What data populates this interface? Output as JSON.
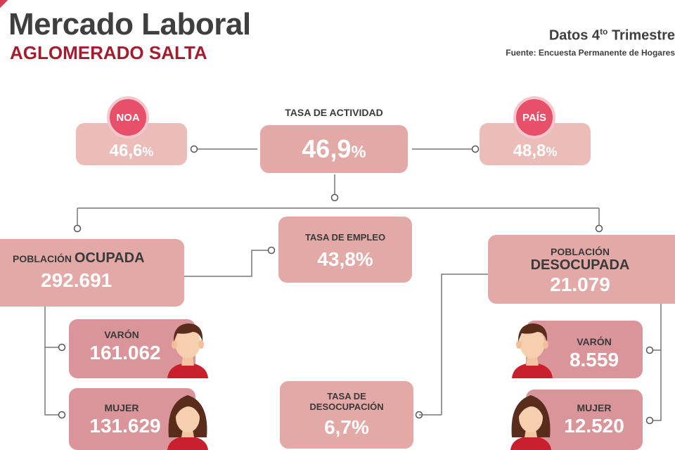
{
  "header": {
    "title": "Mercado Laboral",
    "subtitle": "AGLOMERADO SALTA",
    "datos_prefix": "Datos 4",
    "datos_sup": "to",
    "datos_suffix": " Trimestre",
    "fuente": "Fuente: Encuesta Permanente de Hogares"
  },
  "actividad": {
    "label": "TASA DE ACTIVIDAD",
    "value": "46,9",
    "unit": "%"
  },
  "noa": {
    "badge": "NOA",
    "value": "46,6",
    "unit": "%"
  },
  "pais": {
    "badge": "PAÍS",
    "value": "48,8",
    "unit": "%"
  },
  "empleo": {
    "label": "TASA DE EMPLEO",
    "value": "43,8%"
  },
  "ocupada": {
    "label_prefix": "POBLACIÓN ",
    "label_bold": "OCUPADA",
    "value": "292.691",
    "varon_label": "VARÓN",
    "varon_value": "161.062",
    "mujer_label": "MUJER",
    "mujer_value": "131.629"
  },
  "desocupada": {
    "label_line1": "POBLACIÓN",
    "label_line2": "DESOCUPADA",
    "value": "21.079",
    "varon_label": "VARÓN",
    "varon_value": "8.559",
    "mujer_label": "MUJER",
    "mujer_value": "12.520"
  },
  "desocupacion": {
    "label_line1": "TASA DE",
    "label_line2": "DESOCUPACIÓN",
    "value": "6,7%"
  },
  "colors": {
    "accent": "#a51c2e",
    "badge": "#e8506a",
    "box_light": "#ebbcb8",
    "box_mid": "#e2a9a6",
    "box_dark": "#d9959a"
  }
}
